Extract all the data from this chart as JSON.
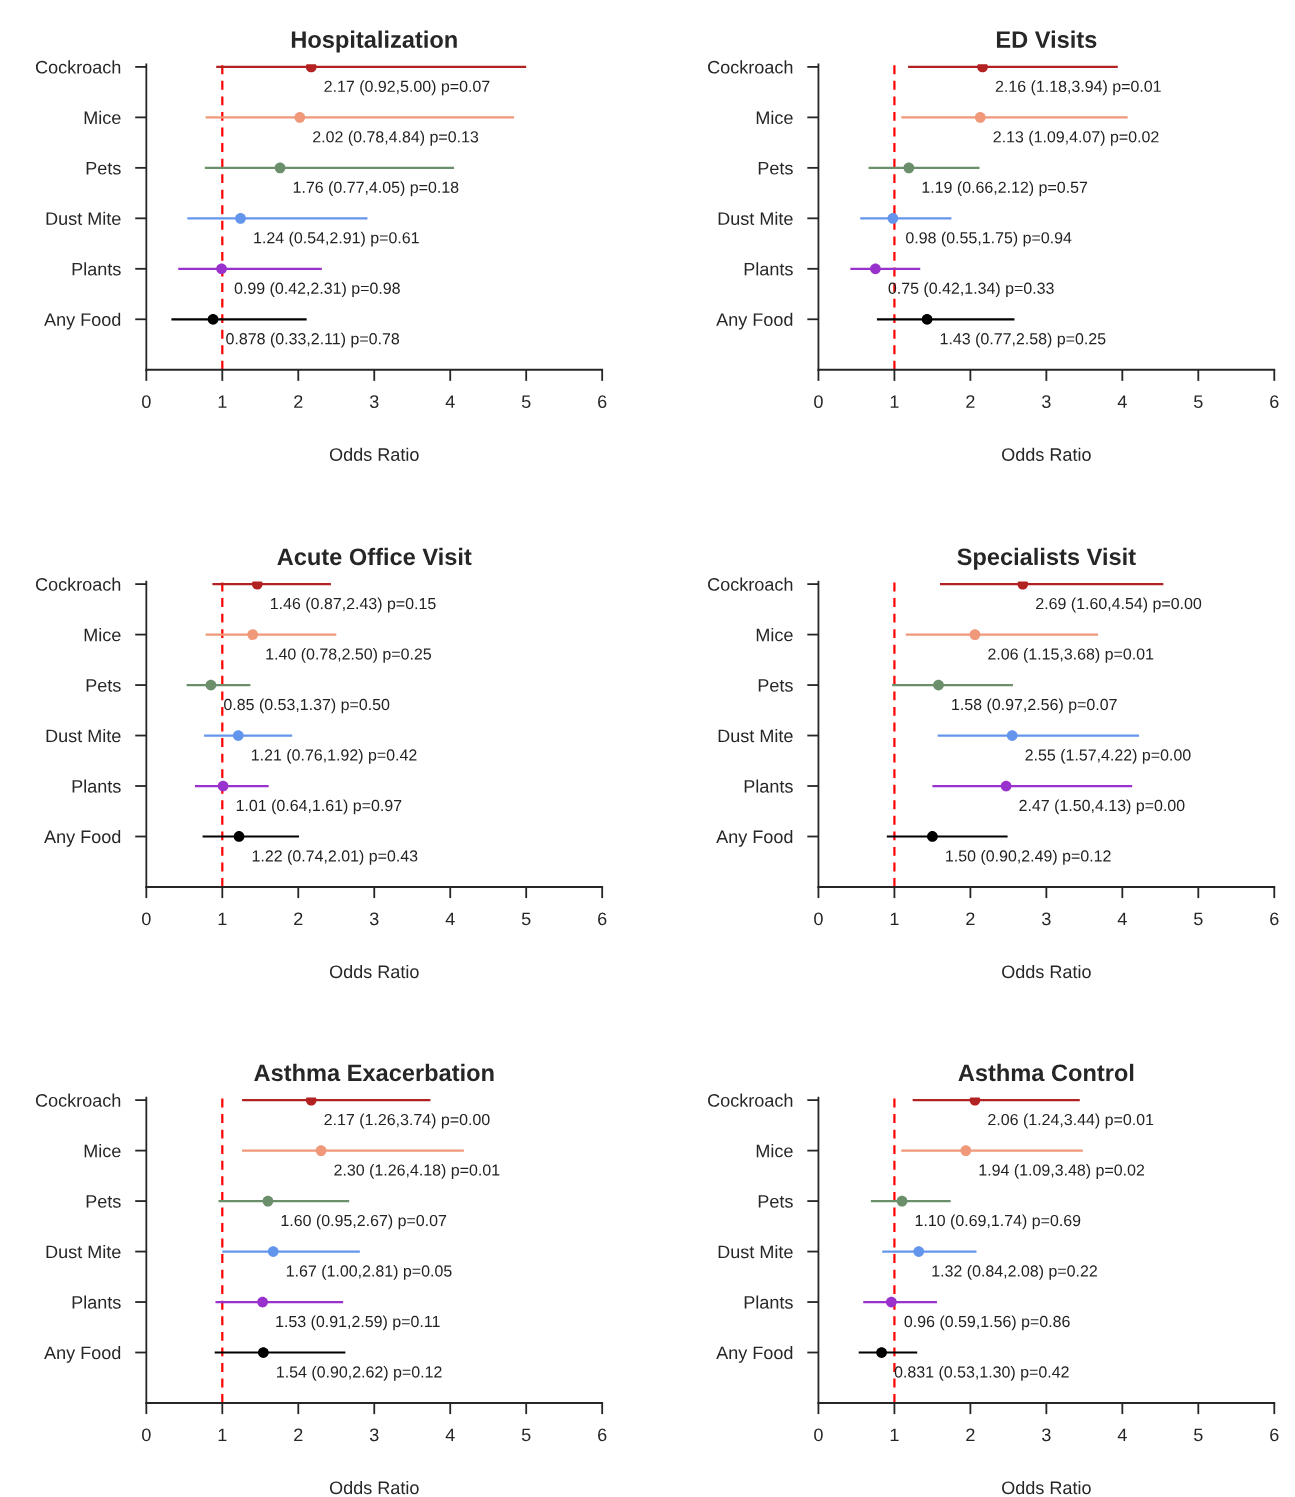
{
  "chart_data": [
    {
      "type": "scatter",
      "orientation": "horizontal",
      "marker": "circle",
      "title": "Hospitalization",
      "xlabel": "Odds Ratio",
      "categories": [
        "Cockroach",
        "Mice",
        "Pets",
        "Dust Mite",
        "Plants",
        "Any Food"
      ],
      "values": [
        2.17,
        2.02,
        1.76,
        1.24,
        0.99,
        0.878
      ],
      "errors": [
        [
          0.92,
          5.0
        ],
        [
          0.78,
          4.84
        ],
        [
          0.77,
          4.05
        ],
        [
          0.54,
          2.91
        ],
        [
          0.42,
          2.31
        ],
        [
          0.33,
          2.11
        ]
      ],
      "colors": [
        "#b22222",
        "#f0987a",
        "#6b8e6b",
        "#6495ed",
        "#9932cc",
        "#000000"
      ],
      "value_labels": [
        "2.17 (0.92,5.00) p=0.07",
        "2.02 (0.78,4.84) p=0.13",
        "1.76 (0.77,4.05) p=0.18",
        "1.24 (0.54,2.91) p=0.61",
        "0.99 (0.42,2.31) p=0.98",
        "0.878 (0.33,2.11) p=0.78"
      ],
      "xlim": [
        0,
        6
      ],
      "xticks": [
        0,
        1,
        2,
        3,
        4,
        5,
        6
      ],
      "ref_lines": [
        {
          "axis": "x",
          "value": 1,
          "color": "#ff0000",
          "line_style": "dashed"
        }
      ]
    },
    {
      "type": "scatter",
      "orientation": "horizontal",
      "marker": "circle",
      "title": "ED Visits",
      "xlabel": "Odds Ratio",
      "categories": [
        "Cockroach",
        "Mice",
        "Pets",
        "Dust Mite",
        "Plants",
        "Any Food"
      ],
      "values": [
        2.16,
        2.13,
        1.19,
        0.98,
        0.75,
        1.43
      ],
      "errors": [
        [
          1.18,
          3.94
        ],
        [
          1.09,
          4.07
        ],
        [
          0.66,
          2.12
        ],
        [
          0.55,
          1.75
        ],
        [
          0.42,
          1.34
        ],
        [
          0.77,
          2.58
        ]
      ],
      "colors": [
        "#b22222",
        "#f0987a",
        "#6b8e6b",
        "#6495ed",
        "#9932cc",
        "#000000"
      ],
      "value_labels": [
        "2.16 (1.18,3.94) p=0.01",
        "2.13 (1.09,4.07) p=0.02",
        "1.19 (0.66,2.12) p=0.57",
        "0.98 (0.55,1.75) p=0.94",
        "0.75 (0.42,1.34) p=0.33",
        "1.43 (0.77,2.58) p=0.25"
      ],
      "xlim": [
        0,
        6
      ],
      "xticks": [
        0,
        1,
        2,
        3,
        4,
        5,
        6
      ],
      "ref_lines": [
        {
          "axis": "x",
          "value": 1,
          "color": "#ff0000",
          "line_style": "dashed"
        }
      ]
    },
    {
      "type": "scatter",
      "orientation": "horizontal",
      "marker": "circle",
      "title": "Acute Office Visit",
      "xlabel": "Odds Ratio",
      "categories": [
        "Cockroach",
        "Mice",
        "Pets",
        "Dust Mite",
        "Plants",
        "Any Food"
      ],
      "values": [
        1.46,
        1.4,
        0.85,
        1.21,
        1.01,
        1.22
      ],
      "errors": [
        [
          0.87,
          2.43
        ],
        [
          0.78,
          2.5
        ],
        [
          0.53,
          1.37
        ],
        [
          0.76,
          1.92
        ],
        [
          0.64,
          1.61
        ],
        [
          0.74,
          2.01
        ]
      ],
      "colors": [
        "#b22222",
        "#f0987a",
        "#6b8e6b",
        "#6495ed",
        "#9932cc",
        "#000000"
      ],
      "value_labels": [
        "1.46 (0.87,2.43) p=0.15",
        "1.40 (0.78,2.50) p=0.25",
        "0.85 (0.53,1.37) p=0.50",
        "1.21 (0.76,1.92) p=0.42",
        "1.01 (0.64,1.61) p=0.97",
        "1.22 (0.74,2.01) p=0.43"
      ],
      "xlim": [
        0,
        6
      ],
      "xticks": [
        0,
        1,
        2,
        3,
        4,
        5,
        6
      ],
      "ref_lines": [
        {
          "axis": "x",
          "value": 1,
          "color": "#ff0000",
          "line_style": "dashed"
        }
      ]
    },
    {
      "type": "scatter",
      "orientation": "horizontal",
      "marker": "circle",
      "title": "Specialists Visit",
      "xlabel": "Odds Ratio",
      "categories": [
        "Cockroach",
        "Mice",
        "Pets",
        "Dust Mite",
        "Plants",
        "Any Food"
      ],
      "values": [
        2.69,
        2.06,
        1.58,
        2.55,
        2.47,
        1.5
      ],
      "errors": [
        [
          1.6,
          4.54
        ],
        [
          1.15,
          3.68
        ],
        [
          0.97,
          2.56
        ],
        [
          1.57,
          4.22
        ],
        [
          1.5,
          4.13
        ],
        [
          0.9,
          2.49
        ]
      ],
      "colors": [
        "#b22222",
        "#f0987a",
        "#6b8e6b",
        "#6495ed",
        "#9932cc",
        "#000000"
      ],
      "value_labels": [
        "2.69 (1.60,4.54) p=0.00",
        "2.06 (1.15,3.68) p=0.01",
        "1.58 (0.97,2.56) p=0.07",
        "2.55 (1.57,4.22) p=0.00",
        "2.47 (1.50,4.13) p=0.00",
        "1.50 (0.90,2.49) p=0.12"
      ],
      "xlim": [
        0,
        6
      ],
      "xticks": [
        0,
        1,
        2,
        3,
        4,
        5,
        6
      ],
      "ref_lines": [
        {
          "axis": "x",
          "value": 1,
          "color": "#ff0000",
          "line_style": "dashed"
        }
      ]
    },
    {
      "type": "scatter",
      "orientation": "horizontal",
      "marker": "circle",
      "title": "Asthma Exacerbation",
      "xlabel": "Odds Ratio",
      "categories": [
        "Cockroach",
        "Mice",
        "Pets",
        "Dust Mite",
        "Plants",
        "Any Food"
      ],
      "values": [
        2.17,
        2.3,
        1.6,
        1.67,
        1.53,
        1.54
      ],
      "errors": [
        [
          1.26,
          3.74
        ],
        [
          1.26,
          4.18
        ],
        [
          0.95,
          2.67
        ],
        [
          1.0,
          2.81
        ],
        [
          0.91,
          2.59
        ],
        [
          0.9,
          2.62
        ]
      ],
      "colors": [
        "#b22222",
        "#f0987a",
        "#6b8e6b",
        "#6495ed",
        "#9932cc",
        "#000000"
      ],
      "value_labels": [
        "2.17 (1.26,3.74) p=0.00",
        "2.30 (1.26,4.18) p=0.01",
        "1.60 (0.95,2.67) p=0.07",
        "1.67 (1.00,2.81) p=0.05",
        "1.53 (0.91,2.59) p=0.11",
        "1.54 (0.90,2.62) p=0.12"
      ],
      "xlim": [
        0,
        6
      ],
      "xticks": [
        0,
        1,
        2,
        3,
        4,
        5,
        6
      ],
      "ref_lines": [
        {
          "axis": "x",
          "value": 1,
          "color": "#ff0000",
          "line_style": "dashed"
        }
      ]
    },
    {
      "type": "scatter",
      "orientation": "horizontal",
      "marker": "circle",
      "title": "Asthma Control",
      "xlabel": "Odds Ratio",
      "categories": [
        "Cockroach",
        "Mice",
        "Pets",
        "Dust Mite",
        "Plants",
        "Any Food"
      ],
      "values": [
        2.06,
        1.94,
        1.1,
        1.32,
        0.96,
        0.831
      ],
      "errors": [
        [
          1.24,
          3.44
        ],
        [
          1.09,
          3.48
        ],
        [
          0.69,
          1.74
        ],
        [
          0.84,
          2.08
        ],
        [
          0.59,
          1.56
        ],
        [
          0.53,
          1.3
        ]
      ],
      "colors": [
        "#b22222",
        "#f0987a",
        "#6b8e6b",
        "#6495ed",
        "#9932cc",
        "#000000"
      ],
      "value_labels": [
        "2.06 (1.24,3.44) p=0.01",
        "1.94 (1.09,3.48) p=0.02",
        "1.10 (0.69,1.74) p=0.69",
        "1.32 (0.84,2.08) p=0.22",
        "0.96 (0.59,1.56) p=0.86",
        "0.831 (0.53,1.30) p=0.42"
      ],
      "xlim": [
        0,
        6
      ],
      "xticks": [
        0,
        1,
        2,
        3,
        4,
        5,
        6
      ],
      "ref_lines": [
        {
          "axis": "x",
          "value": 1,
          "color": "#ff0000",
          "line_style": "dashed"
        }
      ]
    }
  ]
}
